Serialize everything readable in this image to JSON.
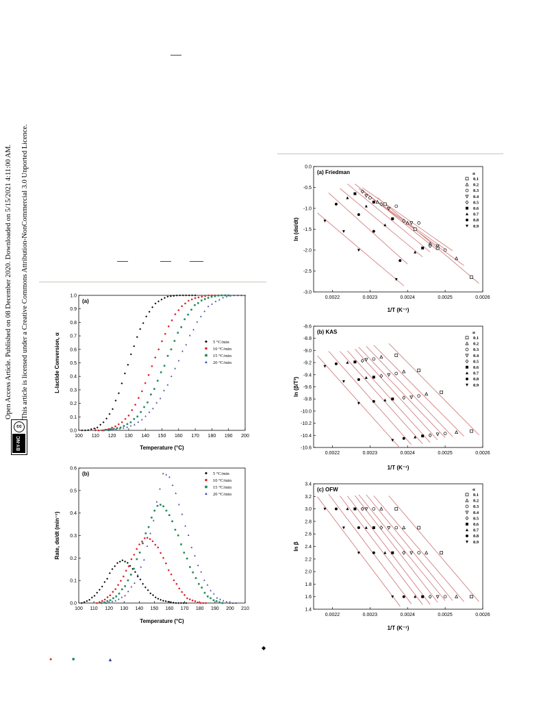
{
  "sidebar": {
    "access_line": "Open Access Article. Published on 08 December 2020. Downloaded on 5/15/2021 4:11:00 AM.",
    "licence_line": "This article is licensed under a Creative Commons Attribution-NonCommercial 3.0 Unported Licence.",
    "badge_cc": "cc",
    "badge_bync": "BY-NC"
  },
  "markers": {
    "diamond": "◆",
    "circle": "●",
    "square": "■",
    "triangle": "▲"
  },
  "colors": {
    "rule": "#c8c4b4",
    "fit_line": "#d08080",
    "s5": "#000000",
    "s10": "#e0202a",
    "s15": "#1f8a57",
    "s20": "#3b4aa0"
  },
  "chart_data": [
    {
      "type": "scatter",
      "panel": "(a)",
      "xlabel": "Temperature (°C)",
      "ylabel": "L-lactide Conversion, α",
      "xlim": [
        100,
        200
      ],
      "ylim": [
        0,
        1.0
      ],
      "xticks": [
        "100",
        "110",
        "120",
        "130",
        "140",
        "150",
        "160",
        "170",
        "180",
        "190",
        "200"
      ],
      "yticks": [
        "0.0",
        "0.1",
        "0.2",
        "0.3",
        "0.4",
        "0.5",
        "0.6",
        "0.7",
        "0.8",
        "0.9",
        "1.0"
      ],
      "legend_position": "right",
      "series": [
        {
          "name": "5 °C/min",
          "color": "#000000",
          "marker": "diamond",
          "x": [
            102,
            105,
            108,
            111,
            114,
            117,
            120,
            123,
            126,
            129,
            132,
            135,
            138,
            141,
            144,
            147,
            150,
            153,
            156,
            160,
            164,
            168,
            170
          ],
          "y": [
            0.0,
            0.0,
            0.01,
            0.02,
            0.05,
            0.09,
            0.15,
            0.24,
            0.35,
            0.47,
            0.58,
            0.69,
            0.78,
            0.85,
            0.91,
            0.95,
            0.97,
            0.99,
            0.995,
            1.0,
            1.0,
            1.0,
            1.0
          ]
        },
        {
          "name": "10 °C/min",
          "color": "#e0202a",
          "marker": "circle",
          "x": [
            110,
            114,
            118,
            122,
            126,
            130,
            134,
            138,
            142,
            146,
            150,
            154,
            158,
            162,
            166,
            170,
            174,
            178,
            182,
            184
          ],
          "y": [
            0.0,
            0.0,
            0.01,
            0.03,
            0.06,
            0.11,
            0.19,
            0.29,
            0.41,
            0.54,
            0.66,
            0.77,
            0.86,
            0.92,
            0.96,
            0.98,
            0.99,
            1.0,
            1.0,
            1.0
          ]
        },
        {
          "name": "15 °C/min",
          "color": "#1f8a57",
          "marker": "square",
          "x": [
            115,
            120,
            125,
            130,
            135,
            140,
            145,
            150,
            155,
            160,
            165,
            170,
            175,
            180,
            185,
            190
          ],
          "y": [
            0.0,
            0.01,
            0.02,
            0.05,
            0.1,
            0.18,
            0.3,
            0.44,
            0.59,
            0.73,
            0.85,
            0.93,
            0.97,
            0.99,
            1.0,
            1.0
          ]
        },
        {
          "name": "20 °C/min",
          "color": "#3b4aa0",
          "marker": "triangle",
          "x": [
            118,
            123,
            128,
            133,
            138,
            143,
            148,
            153,
            158,
            163,
            168,
            173,
            178,
            183,
            188,
            193,
            198,
            200
          ],
          "y": [
            0.0,
            0.01,
            0.02,
            0.04,
            0.08,
            0.14,
            0.22,
            0.33,
            0.46,
            0.6,
            0.73,
            0.84,
            0.92,
            0.96,
            0.99,
            1.0,
            1.0,
            1.0
          ]
        }
      ]
    },
    {
      "type": "scatter",
      "panel": "(b)",
      "xlabel": "Temperature (°C)",
      "ylabel": "Rate, dα/dt (min⁻¹)",
      "xlim": [
        100,
        210
      ],
      "ylim": [
        0,
        0.6
      ],
      "xticks": [
        "100",
        "110",
        "120",
        "130",
        "140",
        "150",
        "160",
        "170",
        "180",
        "190",
        "200",
        "210"
      ],
      "yticks": [
        "0.0",
        "0.1",
        "0.2",
        "0.3",
        "0.4",
        "0.5",
        "0.6"
      ],
      "legend_position": "top-right",
      "series": [
        {
          "name": "5 °C/min",
          "color": "#000000",
          "marker": "diamond",
          "x": [
            102,
            106,
            110,
            114,
            118,
            122,
            126,
            129,
            132,
            136,
            140,
            144,
            148,
            152,
            156,
            160,
            164,
            168,
            171
          ],
          "y": [
            0.0,
            0.01,
            0.03,
            0.06,
            0.1,
            0.15,
            0.18,
            0.19,
            0.18,
            0.15,
            0.11,
            0.07,
            0.04,
            0.02,
            0.01,
            0.005,
            0.0,
            0.0,
            0.0
          ]
        },
        {
          "name": "10 °C/min",
          "color": "#e0202a",
          "marker": "circle",
          "x": [
            112,
            116,
            120,
            124,
            128,
            132,
            136,
            140,
            144,
            146,
            148,
            152,
            156,
            160,
            164,
            168,
            172,
            176,
            180,
            184
          ],
          "y": [
            0.0,
            0.01,
            0.03,
            0.06,
            0.1,
            0.15,
            0.21,
            0.26,
            0.29,
            0.29,
            0.28,
            0.25,
            0.2,
            0.14,
            0.09,
            0.05,
            0.02,
            0.01,
            0.0,
            0.0
          ]
        },
        {
          "name": "15 °C/min",
          "color": "#1f8a57",
          "marker": "square",
          "x": [
            115,
            120,
            125,
            130,
            135,
            140,
            145,
            150,
            153,
            156,
            160,
            165,
            170,
            175,
            180,
            185,
            190,
            195
          ],
          "y": [
            0.0,
            0.01,
            0.03,
            0.07,
            0.13,
            0.22,
            0.32,
            0.41,
            0.44,
            0.43,
            0.39,
            0.31,
            0.22,
            0.14,
            0.08,
            0.03,
            0.01,
            0.0
          ]
        },
        {
          "name": "20 °C/min",
          "color": "#3b4aa0",
          "marker": "triangle",
          "x": [
            118,
            124,
            130,
            136,
            142,
            148,
            152,
            156,
            160,
            164,
            168,
            172,
            176,
            180,
            184,
            188,
            192,
            196,
            200,
            204
          ],
          "y": [
            0.0,
            0.01,
            0.03,
            0.08,
            0.17,
            0.32,
            0.46,
            0.58,
            0.56,
            0.49,
            0.4,
            0.31,
            0.22,
            0.15,
            0.09,
            0.05,
            0.02,
            0.01,
            0.0,
            0.0
          ]
        }
      ]
    },
    {
      "type": "scatter",
      "panel": "(a) Friedman",
      "xlabel": "1/T (K⁻¹)",
      "ylabel": "ln (dα/dt)",
      "xlim": [
        0.00215,
        0.0026
      ],
      "ylim": [
        -3.0,
        0.0
      ],
      "xticks": [
        "0.0022",
        "0.0023",
        "0.0024",
        "0.0025",
        "0.0026"
      ],
      "yticks": [
        "0.0",
        "-0.5",
        "-1.0",
        "-1.5",
        "-2.0",
        "-2.5",
        "-3.0"
      ],
      "legend_title": "α",
      "legend_position": "top-right",
      "series": [
        {
          "name": "0.1",
          "marker": "open-square",
          "x": [
            0.00234,
            0.00242,
            0.00248,
            0.00257
          ],
          "y": [
            -0.9,
            -1.5,
            -1.95,
            -2.65
          ]
        },
        {
          "name": "0.2",
          "marker": "open-triangle",
          "x": [
            0.00232,
            0.0024,
            0.00246,
            0.00253
          ],
          "y": [
            -0.85,
            -1.35,
            -1.85,
            -2.2
          ]
        },
        {
          "name": "0.3",
          "marker": "open-circle",
          "x": [
            0.0023,
            0.00237,
            0.00243,
            0.0025
          ],
          "y": [
            -0.75,
            -0.95,
            -1.35,
            -2.0
          ]
        },
        {
          "name": "0.4",
          "marker": "open-down",
          "x": [
            0.00229,
            0.00235,
            0.00241,
            0.00248
          ],
          "y": [
            -0.7,
            -1.0,
            -1.35,
            -1.9
          ]
        },
        {
          "name": "0.5",
          "marker": "open-diamond",
          "x": [
            0.00228,
            0.00233,
            0.00239,
            0.00246
          ],
          "y": [
            -0.6,
            -0.9,
            -1.3,
            -1.9
          ]
        },
        {
          "name": "0.6",
          "marker": "filled-square",
          "x": [
            0.00226,
            0.00231,
            0.00236,
            0.00244
          ],
          "y": [
            -0.65,
            -0.85,
            -1.25,
            -1.95
          ]
        },
        {
          "name": "0.7",
          "marker": "filled-triangle",
          "x": [
            0.00224,
            0.00229,
            0.00234,
            0.00242
          ],
          "y": [
            -0.75,
            -0.95,
            -1.4,
            -2.05
          ]
        },
        {
          "name": "0.8",
          "marker": "filled-circle",
          "x": [
            0.00221,
            0.00227,
            0.00231,
            0.00238
          ],
          "y": [
            -0.9,
            -1.15,
            -1.55,
            -2.25
          ]
        },
        {
          "name": "0.9",
          "marker": "filled-down",
          "x": [
            0.00218,
            0.00223,
            0.00227,
            0.00237
          ],
          "y": [
            -1.3,
            -1.55,
            -2.0,
            -2.7
          ]
        }
      ]
    },
    {
      "type": "scatter",
      "panel": "(b) KAS",
      "xlabel": "1/T (K⁻¹)",
      "ylabel": "ln (β/T²)",
      "xlim": [
        0.00215,
        0.0026
      ],
      "ylim": [
        -10.6,
        -8.6
      ],
      "xticks": [
        "0.0022",
        "0.0023",
        "0.0024",
        "0.0025",
        "0.0026"
      ],
      "yticks": [
        "-8.6",
        "-8.8",
        "-9.0",
        "-9.2",
        "-9.4",
        "-9.6",
        "-9.8",
        "-10.0",
        "-10.2",
        "-10.4",
        "-10.6"
      ],
      "legend_title": "α",
      "legend_position": "top-right",
      "series": [
        {
          "name": "0.1",
          "marker": "open-square",
          "x": [
            0.00237,
            0.00243,
            0.00249,
            0.00257
          ],
          "y": [
            -9.08,
            -9.33,
            -9.69,
            -10.33
          ]
        },
        {
          "name": "0.2",
          "marker": "open-triangle",
          "x": [
            0.00233,
            0.00239,
            0.00245,
            0.00253
          ],
          "y": [
            -9.11,
            -9.35,
            -9.72,
            -10.35
          ]
        },
        {
          "name": "0.3",
          "marker": "open-circle",
          "x": [
            0.00231,
            0.00237,
            0.00243,
            0.0025
          ],
          "y": [
            -9.14,
            -9.38,
            -9.75,
            -10.37
          ]
        },
        {
          "name": "0.4",
          "marker": "open-down",
          "x": [
            0.00229,
            0.00235,
            0.00241,
            0.00248
          ],
          "y": [
            -9.15,
            -9.4,
            -9.77,
            -10.38
          ]
        },
        {
          "name": "0.5",
          "marker": "open-diamond",
          "x": [
            0.00228,
            0.00233,
            0.00239,
            0.00246
          ],
          "y": [
            -9.17,
            -9.42,
            -9.78,
            -10.4
          ]
        },
        {
          "name": "0.6",
          "marker": "filled-square",
          "x": [
            0.00226,
            0.00231,
            0.00236,
            0.00244
          ],
          "y": [
            -9.19,
            -9.44,
            -9.8,
            -10.41
          ]
        },
        {
          "name": "0.7",
          "marker": "filled-triangle",
          "x": [
            0.00224,
            0.00229,
            0.00234,
            0.00242
          ],
          "y": [
            -9.2,
            -9.45,
            -9.82,
            -10.43
          ]
        },
        {
          "name": "0.8",
          "marker": "filled-circle",
          "x": [
            0.00221,
            0.00227,
            0.00231,
            0.00239
          ],
          "y": [
            -9.22,
            -9.48,
            -9.84,
            -10.45
          ]
        },
        {
          "name": "0.9",
          "marker": "filled-down",
          "x": [
            0.00218,
            0.00223,
            0.00227,
            0.00236
          ],
          "y": [
            -9.26,
            -9.51,
            -9.87,
            -10.48
          ]
        }
      ]
    },
    {
      "type": "scatter",
      "panel": "(c) OFW",
      "xlabel": "1/T (K⁻¹)",
      "ylabel": "ln β",
      "xlim": [
        0.00215,
        0.0026
      ],
      "ylim": [
        1.4,
        3.4
      ],
      "xticks": [
        "0.0022",
        "0.0023",
        "0.0024",
        "0.0025",
        "0.0026"
      ],
      "yticks": [
        "1.4",
        "1.6",
        "1.8",
        "2.0",
        "2.2",
        "2.4",
        "2.6",
        "2.8",
        "3.0",
        "3.2",
        "3.4"
      ],
      "legend_title": "α",
      "legend_position": "top-right",
      "series": [
        {
          "name": "0.1",
          "marker": "open-square",
          "x": [
            0.00237,
            0.00243,
            0.00249,
            0.00257
          ],
          "y": [
            3.0,
            2.7,
            2.3,
            1.6
          ]
        },
        {
          "name": "0.2",
          "marker": "open-triangle",
          "x": [
            0.00233,
            0.00239,
            0.00245,
            0.00253
          ],
          "y": [
            3.0,
            2.7,
            2.3,
            1.6
          ]
        },
        {
          "name": "0.3",
          "marker": "open-circle",
          "x": [
            0.00231,
            0.00237,
            0.00243,
            0.0025
          ],
          "y": [
            3.0,
            2.7,
            2.3,
            1.6
          ]
        },
        {
          "name": "0.4",
          "marker": "open-down",
          "x": [
            0.00229,
            0.00235,
            0.00241,
            0.00248
          ],
          "y": [
            3.0,
            2.7,
            2.3,
            1.6
          ]
        },
        {
          "name": "0.5",
          "marker": "open-diamond",
          "x": [
            0.00228,
            0.00233,
            0.00239,
            0.00246
          ],
          "y": [
            3.0,
            2.7,
            2.3,
            1.6
          ]
        },
        {
          "name": "0.6",
          "marker": "filled-square",
          "x": [
            0.00226,
            0.00231,
            0.00236,
            0.00244
          ],
          "y": [
            3.0,
            2.7,
            2.3,
            1.6
          ]
        },
        {
          "name": "0.7",
          "marker": "filled-triangle",
          "x": [
            0.00224,
            0.00229,
            0.00234,
            0.00242
          ],
          "y": [
            3.0,
            2.7,
            2.3,
            1.6
          ]
        },
        {
          "name": "0.8",
          "marker": "filled-circle",
          "x": [
            0.00221,
            0.00227,
            0.00231,
            0.00239
          ],
          "y": [
            3.0,
            2.7,
            2.3,
            1.6
          ]
        },
        {
          "name": "0.9",
          "marker": "filled-down",
          "x": [
            0.00218,
            0.00223,
            0.00227,
            0.00236
          ],
          "y": [
            3.0,
            2.7,
            2.3,
            1.6
          ]
        }
      ]
    }
  ]
}
